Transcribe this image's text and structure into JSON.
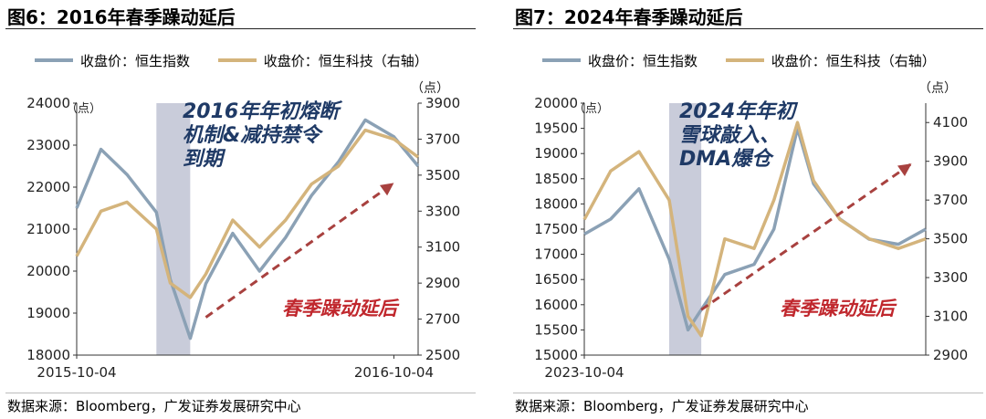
{
  "colors": {
    "hsi": "#8ba1b5",
    "hstech": "#d4b47c",
    "shade": "#c3c6d6",
    "arrow": "#a8413f",
    "red_text": "#c0272d"
  },
  "panels": [
    {
      "title": "图6：2016年春季躁动延后",
      "legend": [
        "收盘价：恒生指数",
        "收盘价：恒生科技（右轴）"
      ],
      "left_unit": "（点）",
      "right_unit": "（点）",
      "annotation": [
        "2016年年初熔断",
        "机制&减持禁令",
        "到期"
      ],
      "arrow_label": "春季躁动延后",
      "source": "数据来源：Bloomberg，广发证券发展研究中心"
    },
    {
      "title": "图7：2024年春季躁动延后",
      "legend": [
        "收盘价：恒生指数",
        "收盘价：恒生科技（右轴）"
      ],
      "left_unit": "（点）",
      "right_unit": "（点）",
      "annotation": [
        "2024年年初",
        "雪球敲入、",
        "DMA爆仓"
      ],
      "arrow_label": "春季躁动延后",
      "source": "数据来源：Bloomberg，广发证券发展研究中心"
    }
  ],
  "chart_data": [
    {
      "type": "line",
      "title": "图6：2016年春季躁动延后",
      "x": [
        "2015-10-04",
        "2015-11-01",
        "2015-12-01",
        "2016-01-04",
        "2016-01-20",
        "2016-02-12",
        "2016-03-01",
        "2016-04-01",
        "2016-05-02",
        "2016-06-01",
        "2016-07-01",
        "2016-08-01",
        "2016-09-01",
        "2016-10-04",
        "2016-11-01"
      ],
      "x_tick_labels": [
        "2015-10-04",
        "2016-10-04"
      ],
      "left_axis": {
        "range": [
          18000,
          24000
        ],
        "ticks": [
          18000,
          19000,
          20000,
          21000,
          22000,
          23000,
          24000
        ]
      },
      "right_axis": {
        "range": [
          2500,
          3900
        ],
        "ticks": [
          2500,
          2700,
          2900,
          3100,
          3300,
          3500,
          3700,
          3900
        ]
      },
      "series": [
        {
          "name": "收盘价：恒生指数",
          "axis": "left",
          "values": [
            21500,
            22900,
            22300,
            21400,
            19800,
            18400,
            19700,
            20900,
            20000,
            20800,
            21800,
            22600,
            23600,
            23200,
            22500
          ]
        },
        {
          "name": "收盘价：恒生科技（右轴）",
          "axis": "right",
          "values": [
            3050,
            3300,
            3350,
            3200,
            2900,
            2820,
            2950,
            3250,
            3100,
            3250,
            3450,
            3550,
            3750,
            3700,
            3600
          ]
        }
      ],
      "shaded_period": [
        "2016-01-04",
        "2016-02-12"
      ],
      "trend_arrow": {
        "from_x": "2016-03-01",
        "from_y": 18900,
        "to_x": "2016-10-04",
        "to_y": 22100
      }
    },
    {
      "type": "line",
      "title": "图7：2024年春季躁动延后",
      "x": [
        "2023-10-04",
        "2023-11-01",
        "2023-12-01",
        "2024-01-02",
        "2024-01-22",
        "2024-02-05",
        "2024-03-01",
        "2024-04-01",
        "2024-04-22",
        "2024-05-17",
        "2024-06-03",
        "2024-07-01",
        "2024-08-01",
        "2024-09-01",
        "2024-09-30"
      ],
      "x_tick_labels": [
        "2023-10-04"
      ],
      "left_axis": {
        "range": [
          15000,
          20000
        ],
        "ticks": [
          15000,
          15500,
          16000,
          16500,
          17000,
          17500,
          18000,
          18500,
          19000,
          19500,
          20000
        ]
      },
      "right_axis": {
        "range": [
          2900,
          4200
        ],
        "ticks": [
          2900,
          3100,
          3300,
          3500,
          3700,
          3900,
          4100
        ]
      },
      "series": [
        {
          "name": "收盘价：恒生指数",
          "axis": "left",
          "values": [
            17400,
            17700,
            18300,
            16900,
            15500,
            15900,
            16600,
            16800,
            17500,
            19500,
            18400,
            17700,
            17300,
            17200,
            17500
          ]
        },
        {
          "name": "收盘价：恒生科技（右轴）",
          "axis": "right",
          "values": [
            3600,
            3850,
            3950,
            3700,
            3100,
            3000,
            3500,
            3450,
            3700,
            4100,
            3800,
            3600,
            3500,
            3450,
            3500
          ]
        }
      ],
      "shaded_period": [
        "2024-01-02",
        "2024-02-05"
      ],
      "trend_arrow": {
        "from_x": "2024-02-05",
        "from_y": 15900,
        "to_x": "2024-09-15",
        "to_y": 18800
      }
    }
  ]
}
